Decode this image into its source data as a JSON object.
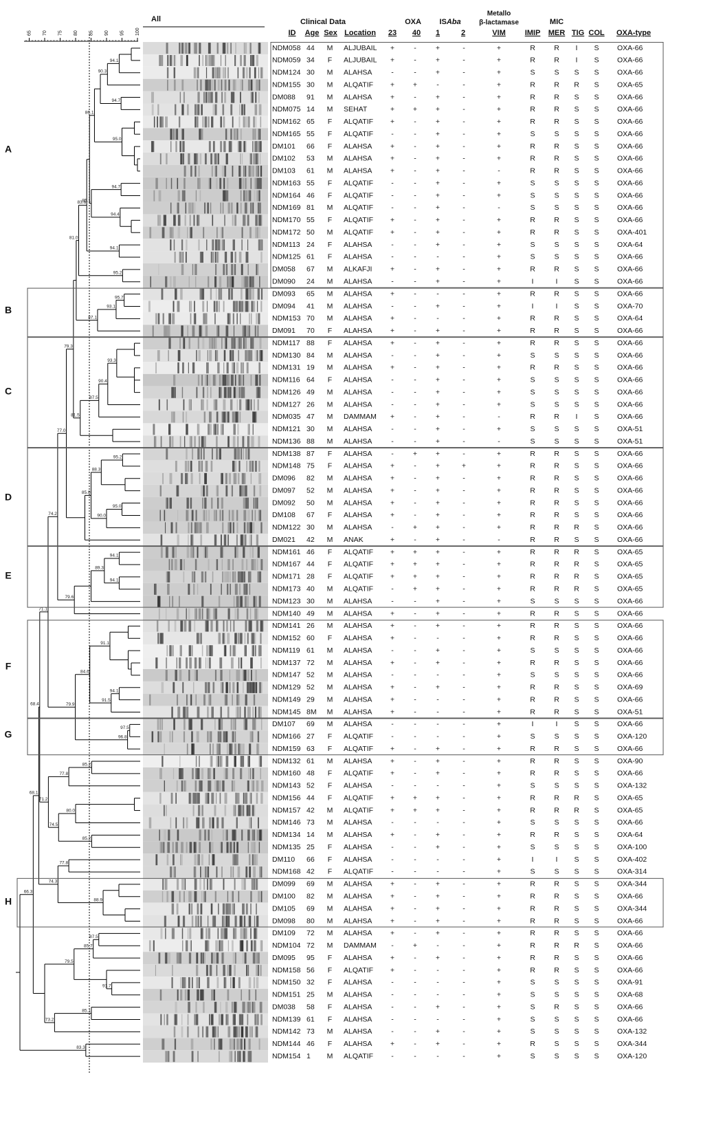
{
  "header": {
    "gel_label": "All",
    "clinical_data": "Clinical Data",
    "oxa": "OXA",
    "isaba_prefix": "IS",
    "isaba_italic": "Aba",
    "metallo": "Metallo",
    "beta_lactamase": "β-lactamase",
    "mic": "MIC"
  },
  "columns": [
    "ID",
    "Age",
    "Sex",
    "Location",
    "23",
    "40",
    "1",
    "2",
    "VIM",
    "IMIP",
    "MER",
    "TIG",
    "COL",
    "OXA-type"
  ],
  "rows": [
    [
      "NDM058",
      "44",
      "M",
      "ALJUBAIL",
      "+",
      "-",
      "+",
      "-",
      "+",
      "R",
      "R",
      "I",
      "S",
      "OXA-66"
    ],
    [
      "NDM059",
      "34",
      "F",
      "ALJUBAIL",
      "+",
      "-",
      "+",
      "-",
      "+",
      "R",
      "R",
      "I",
      "S",
      "OXA-66"
    ],
    [
      "NDM124",
      "30",
      "M",
      "ALAHSA",
      "-",
      "-",
      "+",
      "-",
      "+",
      "S",
      "S",
      "S",
      "S",
      "OXA-66"
    ],
    [
      "NDM155",
      "30",
      "M",
      "ALQATIF",
      "+",
      "+",
      "-",
      "-",
      "+",
      "R",
      "R",
      "R",
      "S",
      "OXA-65"
    ],
    [
      "DM088",
      "91",
      "M",
      "ALAHSA",
      "+",
      "-",
      "+",
      "-",
      "+",
      "R",
      "R",
      "S",
      "S",
      "OXA-66"
    ],
    [
      "NDM075",
      "14",
      "M",
      "SEHAT",
      "+",
      "+",
      "+",
      "-",
      "+",
      "R",
      "R",
      "S",
      "S",
      "OXA-66"
    ],
    [
      "NDM162",
      "65",
      "F",
      "ALQATIF",
      "+",
      "-",
      "+",
      "-",
      "+",
      "R",
      "R",
      "S",
      "S",
      "OXA-66"
    ],
    [
      "NDM165",
      "55",
      "F",
      "ALQATIF",
      "-",
      "-",
      "+",
      "-",
      "+",
      "S",
      "S",
      "S",
      "S",
      "OXA-66"
    ],
    [
      "DM101",
      "66",
      "F",
      "ALAHSA",
      "+",
      "-",
      "+",
      "-",
      "+",
      "R",
      "R",
      "S",
      "S",
      "OXA-66"
    ],
    [
      "DM102",
      "53",
      "M",
      "ALAHSA",
      "+",
      "-",
      "+",
      "-",
      "+",
      "R",
      "R",
      "S",
      "S",
      "OXA-66"
    ],
    [
      "DM103",
      "61",
      "M",
      "ALAHSA",
      "+",
      "-",
      "+",
      "-",
      "-",
      "R",
      "R",
      "S",
      "S",
      "OXA-66"
    ],
    [
      "NDM163",
      "55",
      "F",
      "ALQATIF",
      "-",
      "-",
      "+",
      "-",
      "+",
      "S",
      "S",
      "S",
      "S",
      "OXA-66"
    ],
    [
      "NDM164",
      "46",
      "F",
      "ALQATIF",
      "-",
      "-",
      "+",
      "-",
      "+",
      "S",
      "S",
      "S",
      "S",
      "OXA-66"
    ],
    [
      "NDM169",
      "81",
      "M",
      "ALQATIF",
      "-",
      "-",
      "+",
      "-",
      "-",
      "S",
      "S",
      "S",
      "S",
      "OXA-66"
    ],
    [
      "NDM170",
      "55",
      "F",
      "ALQATIF",
      "+",
      "-",
      "+",
      "-",
      "+",
      "R",
      "R",
      "S",
      "S",
      "OXA-66"
    ],
    [
      "NDM172",
      "50",
      "M",
      "ALQATIF",
      "+",
      "-",
      "+",
      "-",
      "+",
      "R",
      "R",
      "S",
      "S",
      "OXA-401"
    ],
    [
      "NDM113",
      "24",
      "F",
      "ALAHSA",
      "-",
      "-",
      "+",
      "-",
      "+",
      "S",
      "S",
      "S",
      "S",
      "OXA-64"
    ],
    [
      "NDM125",
      "61",
      "F",
      "ALAHSA",
      "-",
      "-",
      "-",
      "-",
      "+",
      "S",
      "S",
      "S",
      "S",
      "OXA-66"
    ],
    [
      "DM058",
      "67",
      "M",
      "ALKAFJI",
      "+",
      "-",
      "+",
      "-",
      "+",
      "R",
      "R",
      "S",
      "S",
      "OXA-66"
    ],
    [
      "DM090",
      "24",
      "M",
      "ALAHSA",
      "-",
      "-",
      "+",
      "-",
      "+",
      "I",
      "I",
      "S",
      "S",
      "OXA-66"
    ],
    [
      "DM093",
      "65",
      "M",
      "ALAHSA",
      "+",
      "-",
      "-",
      "-",
      "+",
      "R",
      "R",
      "S",
      "S",
      "OXA-66"
    ],
    [
      "DM094",
      "41",
      "M",
      "ALAHSA",
      "-",
      "-",
      "+",
      "-",
      "+",
      "I",
      "I",
      "S",
      "S",
      "OXA-70"
    ],
    [
      "NDM153",
      "70",
      "M",
      "ALAHSA",
      "+",
      "-",
      "-",
      "-",
      "+",
      "R",
      "R",
      "S",
      "S",
      "OXA-64"
    ],
    [
      "DM091",
      "70",
      "F",
      "ALAHSA",
      "+",
      "-",
      "+",
      "-",
      "+",
      "R",
      "R",
      "S",
      "S",
      "OXA-66"
    ],
    [
      "NDM117",
      "88",
      "F",
      "ALAHSA",
      "+",
      "-",
      "+",
      "-",
      "+",
      "R",
      "R",
      "S",
      "S",
      "OXA-66"
    ],
    [
      "NDM130",
      "84",
      "M",
      "ALAHSA",
      "-",
      "-",
      "+",
      "-",
      "+",
      "S",
      "S",
      "S",
      "S",
      "OXA-66"
    ],
    [
      "NDM131",
      "19",
      "M",
      "ALAHSA",
      "+",
      "-",
      "+",
      "-",
      "+",
      "R",
      "R",
      "S",
      "S",
      "OXA-66"
    ],
    [
      "NDM116",
      "64",
      "F",
      "ALAHSA",
      "-",
      "-",
      "+",
      "-",
      "+",
      "S",
      "S",
      "S",
      "S",
      "OXA-66"
    ],
    [
      "NDM126",
      "49",
      "M",
      "ALAHSA",
      "-",
      "-",
      "+",
      "-",
      "+",
      "S",
      "S",
      "S",
      "S",
      "OXA-66"
    ],
    [
      "NDM127",
      "26",
      "M",
      "ALAHSA",
      "-",
      "-",
      "+",
      "-",
      "+",
      "S",
      "S",
      "S",
      "S",
      "OXA-66"
    ],
    [
      "NDM035",
      "47",
      "M",
      "DAMMAM",
      "+",
      "-",
      "+",
      "-",
      "-",
      "R",
      "R",
      "I",
      "S",
      "OXA-66"
    ],
    [
      "NDM121",
      "30",
      "M",
      "ALAHSA",
      "-",
      "-",
      "+",
      "-",
      "+",
      "S",
      "S",
      "S",
      "S",
      "OXA-51"
    ],
    [
      "NDM136",
      "88",
      "M",
      "ALAHSA",
      "-",
      "-",
      "+",
      "-",
      "-",
      "S",
      "S",
      "S",
      "S",
      "OXA-51"
    ],
    [
      "NDM138",
      "87",
      "F",
      "ALAHSA",
      "-",
      "+",
      "+",
      "-",
      "+",
      "R",
      "R",
      "S",
      "S",
      "OXA-66"
    ],
    [
      "NDM148",
      "75",
      "F",
      "ALAHSA",
      "+",
      "-",
      "+",
      "+",
      "+",
      "R",
      "R",
      "S",
      "S",
      "OXA-66"
    ],
    [
      "DM096",
      "82",
      "M",
      "ALAHSA",
      "+",
      "-",
      "+",
      "-",
      "+",
      "R",
      "R",
      "S",
      "S",
      "OXA-66"
    ],
    [
      "DM097",
      "52",
      "M",
      "ALAHSA",
      "+",
      "-",
      "+",
      "-",
      "+",
      "R",
      "R",
      "S",
      "S",
      "OXA-66"
    ],
    [
      "DM092",
      "50",
      "M",
      "ALAHSA",
      "+",
      "-",
      "+",
      "-",
      "+",
      "R",
      "R",
      "S",
      "S",
      "OXA-66"
    ],
    [
      "DM108",
      "67",
      "F",
      "ALAHSA",
      "+",
      "-",
      "+",
      "-",
      "+",
      "R",
      "R",
      "S",
      "S",
      "OXA-66"
    ],
    [
      "NDM122",
      "30",
      "M",
      "ALAHSA",
      "-",
      "+",
      "+",
      "-",
      "+",
      "R",
      "R",
      "R",
      "S",
      "OXA-66"
    ],
    [
      "DM021",
      "42",
      "M",
      "ANAK",
      "+",
      "-",
      "+",
      "-",
      "-",
      "R",
      "R",
      "S",
      "S",
      "OXA-66"
    ],
    [
      "NDM161",
      "46",
      "F",
      "ALQATIF",
      "+",
      "+",
      "+",
      "-",
      "+",
      "R",
      "R",
      "R",
      "S",
      "OXA-65"
    ],
    [
      "NDM167",
      "44",
      "F",
      "ALQATIF",
      "+",
      "+",
      "+",
      "-",
      "+",
      "R",
      "R",
      "R",
      "S",
      "OXA-65"
    ],
    [
      "NDM171",
      "28",
      "F",
      "ALQATIF",
      "+",
      "+",
      "+",
      "-",
      "+",
      "R",
      "R",
      "R",
      "S",
      "OXA-65"
    ],
    [
      "NDM173",
      "40",
      "M",
      "ALQATIF",
      "-",
      "+",
      "+",
      "-",
      "+",
      "R",
      "R",
      "R",
      "S",
      "OXA-65"
    ],
    [
      "NDM123",
      "30",
      "M",
      "ALAHSA",
      "-",
      "-",
      "+",
      "-",
      "+",
      "S",
      "S",
      "S",
      "S",
      "OXA-66"
    ],
    [
      "NDM140",
      "49",
      "M",
      "ALAHSA",
      "+",
      "-",
      "+",
      "-",
      "+",
      "R",
      "R",
      "S",
      "S",
      "OXA-66"
    ],
    [
      "NDM141",
      "26",
      "M",
      "ALAHSA",
      "+",
      "-",
      "+",
      "-",
      "+",
      "R",
      "R",
      "S",
      "S",
      "OXA-66"
    ],
    [
      "NDM152",
      "60",
      "F",
      "ALAHSA",
      "+",
      "-",
      "-",
      "-",
      "+",
      "R",
      "R",
      "S",
      "S",
      "OXA-66"
    ],
    [
      "NDM119",
      "61",
      "M",
      "ALAHSA",
      "-",
      "-",
      "+",
      "-",
      "+",
      "S",
      "S",
      "S",
      "S",
      "OXA-66"
    ],
    [
      "NDM137",
      "72",
      "M",
      "ALAHSA",
      "+",
      "-",
      "+",
      "-",
      "+",
      "R",
      "R",
      "S",
      "S",
      "OXA-66"
    ],
    [
      "NDM147",
      "52",
      "M",
      "ALAHSA",
      "-",
      "-",
      "-",
      "-",
      "+",
      "S",
      "S",
      "S",
      "S",
      "OXA-66"
    ],
    [
      "NDM129",
      "52",
      "M",
      "ALAHSA",
      "+",
      "-",
      "+",
      "-",
      "+",
      "R",
      "R",
      "S",
      "S",
      "OXA-69"
    ],
    [
      "NDM149",
      "29",
      "M",
      "ALAHSA",
      "+",
      "-",
      "-",
      "-",
      "+",
      "R",
      "R",
      "S",
      "S",
      "OXA-66"
    ],
    [
      "NDM145",
      "8M",
      "M",
      "ALAHSA",
      "+",
      "-",
      "-",
      "-",
      "+",
      "R",
      "R",
      "S",
      "S",
      "OXA-51"
    ],
    [
      "DM107",
      "69",
      "M",
      "ALAHSA",
      "-",
      "-",
      "-",
      "-",
      "+",
      "I",
      "I",
      "S",
      "S",
      "OXA-66"
    ],
    [
      "NDM166",
      "27",
      "F",
      "ALQATIF",
      "-",
      "-",
      "-",
      "-",
      "+",
      "S",
      "S",
      "S",
      "S",
      "OXA-120"
    ],
    [
      "NDM159",
      "63",
      "F",
      "ALQATIF",
      "+",
      "-",
      "+",
      "-",
      "+",
      "R",
      "R",
      "S",
      "S",
      "OXA-66"
    ],
    [
      "NDM132",
      "61",
      "M",
      "ALAHSA",
      "+",
      "-",
      "+",
      "-",
      "+",
      "R",
      "R",
      "S",
      "S",
      "OXA-90"
    ],
    [
      "NDM160",
      "48",
      "F",
      "ALQATIF",
      "+",
      "-",
      "+",
      "-",
      "+",
      "R",
      "R",
      "S",
      "S",
      "OXA-66"
    ],
    [
      "NDM143",
      "52",
      "F",
      "ALAHSA",
      "-",
      "-",
      "-",
      "-",
      "+",
      "S",
      "S",
      "S",
      "S",
      "OXA-132"
    ],
    [
      "NDM156",
      "44",
      "F",
      "ALQATIF",
      "+",
      "+",
      "+",
      "-",
      "+",
      "R",
      "R",
      "R",
      "S",
      "OXA-65"
    ],
    [
      "NDM157",
      "42",
      "M",
      "ALQATIF",
      "+",
      "+",
      "+",
      "-",
      "+",
      "R",
      "R",
      "R",
      "S",
      "OXA-65"
    ],
    [
      "NDM146",
      "73",
      "M",
      "ALAHSA",
      "-",
      "-",
      "-",
      "-",
      "+",
      "S",
      "S",
      "S",
      "S",
      "OXA-66"
    ],
    [
      "NDM134",
      "14",
      "M",
      "ALAHSA",
      "+",
      "-",
      "+",
      "-",
      "+",
      "R",
      "R",
      "S",
      "S",
      "OXA-64"
    ],
    [
      "NDM135",
      "25",
      "F",
      "ALAHSA",
      "-",
      "-",
      "+",
      "-",
      "+",
      "S",
      "S",
      "S",
      "S",
      "OXA-100"
    ],
    [
      "DM110",
      "66",
      "F",
      "ALAHSA",
      "-",
      "-",
      "-",
      "-",
      "+",
      "I",
      "I",
      "S",
      "S",
      "OXA-402"
    ],
    [
      "NDM168",
      "42",
      "F",
      "ALQATIF",
      "-",
      "-",
      "-",
      "-",
      "+",
      "S",
      "S",
      "S",
      "S",
      "OXA-314"
    ],
    [
      "DM099",
      "69",
      "M",
      "ALAHSA",
      "+",
      "-",
      "+",
      "-",
      "+",
      "R",
      "R",
      "S",
      "S",
      "OXA-344"
    ],
    [
      "DM100",
      "82",
      "M",
      "ALAHSA",
      "+",
      "-",
      "+",
      "-",
      "+",
      "R",
      "R",
      "S",
      "S",
      "OXA-66"
    ],
    [
      "DM105",
      "69",
      "M",
      "ALAHSA",
      "+",
      "-",
      "+",
      "-",
      "+",
      "R",
      "R",
      "S",
      "S",
      "OXA-344"
    ],
    [
      "DM098",
      "80",
      "M",
      "ALAHSA",
      "+",
      "-",
      "+",
      "-",
      "+",
      "R",
      "R",
      "S",
      "S",
      "OXA-66"
    ],
    [
      "DM109",
      "72",
      "M",
      "ALAHSA",
      "+",
      "-",
      "+",
      "-",
      "+",
      "R",
      "R",
      "S",
      "S",
      "OXA-66"
    ],
    [
      "NDM104",
      "72",
      "M",
      "DAMMAM",
      "-",
      "+",
      "-",
      "-",
      "+",
      "R",
      "R",
      "R",
      "S",
      "OXA-66"
    ],
    [
      "DM095",
      "95",
      "F",
      "ALAHSA",
      "+",
      "-",
      "+",
      "-",
      "+",
      "R",
      "R",
      "S",
      "S",
      "OXA-66"
    ],
    [
      "NDM158",
      "56",
      "F",
      "ALQATIF",
      "+",
      "-",
      "-",
      "-",
      "+",
      "R",
      "R",
      "S",
      "S",
      "OXA-66"
    ],
    [
      "NDM150",
      "32",
      "F",
      "ALAHSA",
      "-",
      "-",
      "-",
      "-",
      "+",
      "S",
      "S",
      "S",
      "S",
      "OXA-91"
    ],
    [
      "NDM151",
      "25",
      "M",
      "ALAHSA",
      "-",
      "-",
      "-",
      "-",
      "+",
      "S",
      "S",
      "S",
      "S",
      "OXA-68"
    ],
    [
      "DM038",
      "58",
      "F",
      "ALAHSA",
      "-",
      "-",
      "+",
      "-",
      "+",
      "S",
      "R",
      "S",
      "S",
      "OXA-66"
    ],
    [
      "NDM139",
      "61",
      "F",
      "ALAHSA",
      "-",
      "-",
      "-",
      "-",
      "+",
      "S",
      "S",
      "S",
      "S",
      "OXA-66"
    ],
    [
      "NDM142",
      "73",
      "M",
      "ALAHSA",
      "-",
      "-",
      "+",
      "-",
      "+",
      "S",
      "S",
      "S",
      "S",
      "OXA-132"
    ],
    [
      "NDM144",
      "46",
      "F",
      "ALAHSA",
      "+",
      "-",
      "+",
      "-",
      "+",
      "R",
      "S",
      "S",
      "S",
      "OXA-344"
    ],
    [
      "NDM154",
      "1",
      "M",
      "ALQATIF",
      "-",
      "-",
      "-",
      "-",
      "+",
      "S",
      "S",
      "S",
      "S",
      "OXA-120"
    ]
  ],
  "clusters": [
    "A",
    "B",
    "C",
    "D",
    "E",
    "F",
    "G",
    "H"
  ],
  "dendrogram": {
    "scale_ticks": [
      65,
      70,
      75,
      80,
      85,
      90,
      95,
      100
    ],
    "node_labels": [
      "94.1",
      "90.3",
      "94.7",
      "86.1",
      "95.0",
      "94.7",
      "85.1",
      "94.4",
      "94.1",
      "83.6",
      "81.0",
      "95.2",
      "95.7",
      "93.1",
      "87.1",
      "81.5",
      "93.3",
      "90.4",
      "87.5",
      "79.3",
      "95.2",
      "88.3",
      "85.0",
      "95.0",
      "77.0",
      "90.0",
      "94.1",
      "89.3",
      "94.1",
      "79.6",
      "74.2",
      "91.1",
      "84.6",
      "94.1",
      "91.5",
      "71.1",
      "79.9",
      "97.5",
      "96.8",
      "71.2",
      "85.2",
      "77.8",
      "80.0",
      "74.5",
      "85.2",
      "68.4",
      "77.8",
      "68.1",
      "74.3",
      "88.9",
      "66.3",
      "87.5",
      "85.7",
      "79.5",
      "91.7",
      "85.1",
      "73.2",
      "83.3"
    ]
  }
}
